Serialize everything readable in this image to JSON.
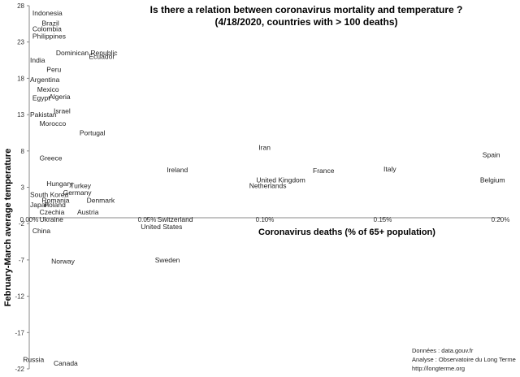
{
  "chart_data": {
    "type": "scatter",
    "title_lines": [
      "Is there a relation between coronavirus mortality and temperature ?",
      "(4/18/2020, countries with > 100 deaths)"
    ],
    "xlabel": "Coronavirus deaths (% of 65+ population)",
    "ylabel": "February-March average temperature",
    "xlim": [
      0,
      0.2
    ],
    "ylim": [
      -22,
      28
    ],
    "x_ticks": [
      {
        "value": 0,
        "label": "0.00%"
      },
      {
        "value": 0.05,
        "label": "0.05%"
      },
      {
        "value": 0.1,
        "label": "0.10%"
      },
      {
        "value": 0.15,
        "label": "0.15%"
      },
      {
        "value": 0.2,
        "label": "0.20%"
      }
    ],
    "y_ticks": [
      28,
      23,
      18,
      13,
      8,
      3,
      -2,
      -7,
      -12,
      -17,
      -22
    ],
    "points": [
      {
        "label": "Indonesia",
        "x": 0.001,
        "y": 27
      },
      {
        "label": "Brazil",
        "x": 0.005,
        "y": 25.6
      },
      {
        "label": "Colombia",
        "x": 0.001,
        "y": 24.8
      },
      {
        "label": "Philippines",
        "x": 0.001,
        "y": 23.8
      },
      {
        "label": "Dominican Republic",
        "x": 0.011,
        "y": 21.5
      },
      {
        "label": "Ecuador",
        "x": 0.025,
        "y": 21
      },
      {
        "label": "India",
        "x": 0,
        "y": 20.5
      },
      {
        "label": "Peru",
        "x": 0.007,
        "y": 19.2
      },
      {
        "label": "Argentina",
        "x": 0,
        "y": 17.8
      },
      {
        "label": "Mexico",
        "x": 0.003,
        "y": 16.5
      },
      {
        "label": "Algeria",
        "x": 0.008,
        "y": 15.5
      },
      {
        "label": "Egypt",
        "x": 0.001,
        "y": 15.3
      },
      {
        "label": "Israel",
        "x": 0.01,
        "y": 13.5
      },
      {
        "label": "Pakistan",
        "x": 0,
        "y": 13
      },
      {
        "label": "Morocco",
        "x": 0.004,
        "y": 11.8
      },
      {
        "label": "Portugal",
        "x": 0.021,
        "y": 10.5
      },
      {
        "label": "Iran",
        "x": 0.097,
        "y": 8.5
      },
      {
        "label": "Spain",
        "x": 0.192,
        "y": 7.5
      },
      {
        "label": "Greece",
        "x": 0.004,
        "y": 7
      },
      {
        "label": "Ireland",
        "x": 0.058,
        "y": 5.4
      },
      {
        "label": "France",
        "x": 0.12,
        "y": 5.3
      },
      {
        "label": "Italy",
        "x": 0.15,
        "y": 5.5
      },
      {
        "label": "United Kingdom",
        "x": 0.096,
        "y": 4
      },
      {
        "label": "Belgium",
        "x": 0.191,
        "y": 4
      },
      {
        "label": "Netherlands",
        "x": 0.093,
        "y": 3.2
      },
      {
        "label": "Hungary",
        "x": 0.007,
        "y": 3.5
      },
      {
        "label": "Turkey",
        "x": 0.017,
        "y": 3.2
      },
      {
        "label": "Germany",
        "x": 0.014,
        "y": 2.3
      },
      {
        "label": "South Korea",
        "x": 0,
        "y": 2
      },
      {
        "label": "Romania",
        "x": 0.005,
        "y": 1.2
      },
      {
        "label": "Denmark",
        "x": 0.024,
        "y": 1.2
      },
      {
        "label": "Japan",
        "x": 0,
        "y": 0.6
      },
      {
        "label": "Poland",
        "x": 0.006,
        "y": 0.6
      },
      {
        "label": "Czechia",
        "x": 0.004,
        "y": -0.4
      },
      {
        "label": "Austria",
        "x": 0.02,
        "y": -0.4
      },
      {
        "label": "Ukraine",
        "x": 0.004,
        "y": -1.4
      },
      {
        "label": "Switzerland",
        "x": 0.054,
        "y": -1.4
      },
      {
        "label": "United States",
        "x": 0.047,
        "y": -2.4
      },
      {
        "label": "China",
        "x": 0.001,
        "y": -3
      },
      {
        "label": "Norway",
        "x": 0.009,
        "y": -7.2
      },
      {
        "label": "Sweden",
        "x": 0.053,
        "y": -7
      },
      {
        "label": "Russia",
        "x": -0.003,
        "y": -20.7
      },
      {
        "label": "Canada",
        "x": 0.01,
        "y": -21.2
      }
    ],
    "source_lines": [
      "Données : data.gouv.fr",
      "Analyse : Observatoire du Long Terme",
      "http://longterme.org"
    ],
    "grid": false,
    "legend": "none"
  }
}
